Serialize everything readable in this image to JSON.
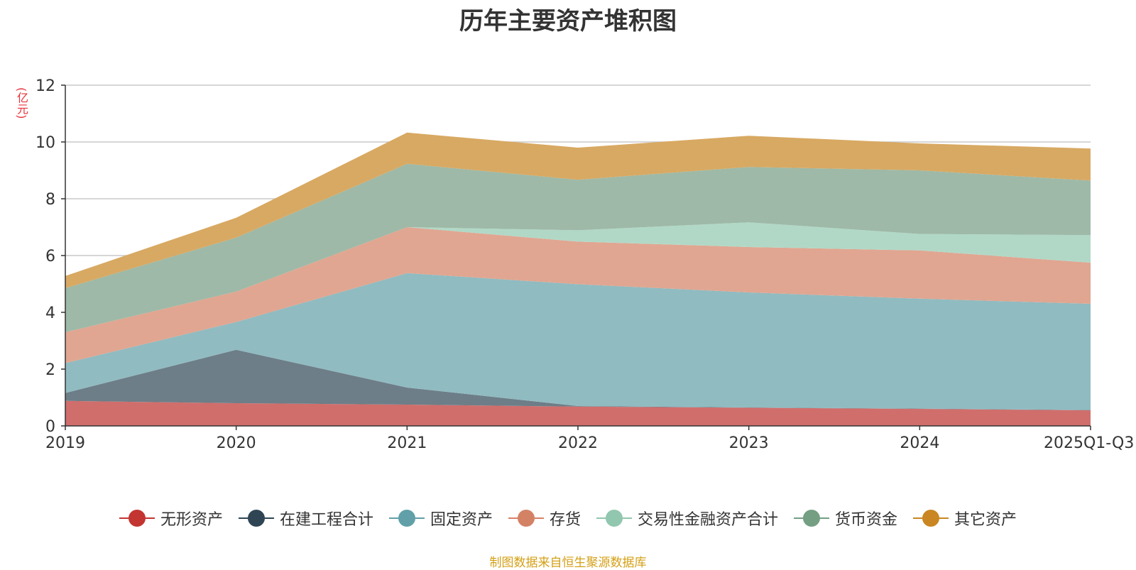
{
  "page": {
    "title": "历年主要资产堆积图",
    "unit": "(亿元)",
    "source": "制图数据来自恒生聚源数据库"
  },
  "chart_data": {
    "type": "area",
    "stacked": true,
    "title": "历年主要资产堆积图",
    "xlabel": "",
    "ylabel": "(亿元)",
    "categories": [
      "2019",
      "2020",
      "2021",
      "2022",
      "2023",
      "2024",
      "2025Q1-Q3"
    ],
    "ylim": [
      0,
      12
    ],
    "yticks": [
      0,
      2,
      4,
      6,
      8,
      10,
      12
    ],
    "grid": true,
    "legend_position": "bottom",
    "series": [
      {
        "name": "无形资产",
        "color": "#c23531",
        "fill": "#d06e6c",
        "values": [
          0.88,
          0.8,
          0.75,
          0.68,
          0.64,
          0.6,
          0.55
        ]
      },
      {
        "name": "在建工程合计",
        "color": "#2f4554",
        "fill": "#6d7e88",
        "values": [
          0.28,
          1.88,
          0.6,
          0.02,
          0.01,
          0.01,
          0.01
        ]
      },
      {
        "name": "固定资产",
        "color": "#61a0a8",
        "fill": "#90bbc1",
        "values": [
          1.05,
          0.98,
          4.03,
          4.29,
          4.05,
          3.87,
          3.74
        ]
      },
      {
        "name": "存货",
        "color": "#d48265",
        "fill": "#e0a691",
        "values": [
          1.09,
          1.07,
          1.62,
          1.5,
          1.6,
          1.7,
          1.45
        ]
      },
      {
        "name": "交易性金融资产合计",
        "color": "#91c7ae",
        "fill": "#b1d8c6",
        "values": [
          0,
          0,
          0,
          0.4,
          0.87,
          0.58,
          0.97
        ]
      },
      {
        "name": "货币资金",
        "color": "#749f83",
        "fill": "#9eb9a7",
        "values": [
          1.55,
          1.9,
          2.23,
          1.78,
          1.95,
          2.24,
          1.92
        ]
      },
      {
        "name": "其它资产",
        "color": "#ca8622",
        "fill": "#d8a963",
        "values": [
          0.43,
          0.7,
          1.1,
          1.13,
          1.1,
          0.95,
          1.13
        ]
      }
    ]
  }
}
